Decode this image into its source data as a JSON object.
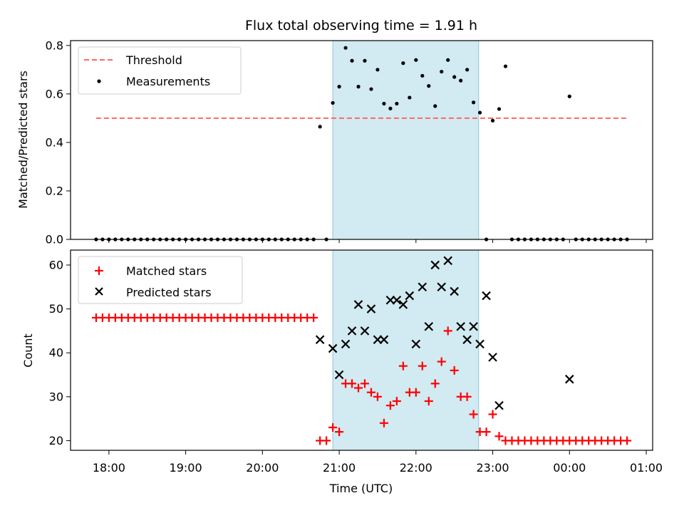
{
  "chart_data": [
    {
      "type": "scatter",
      "title": "Flux total observing time = 1.91 h",
      "xlabel": "",
      "ylabel": "Matched/Predicted stars",
      "ylim": [
        0,
        0.82
      ],
      "yticks": [
        0.0,
        0.2,
        0.4,
        0.6,
        0.8
      ],
      "ytick_labels": [
        "0.0",
        "0.2",
        "0.4",
        "0.6",
        "0.8"
      ],
      "legend_position": "top-left",
      "shaded_interval": {
        "start": "20:55",
        "end": "22:49",
        "color": "#add8e6"
      },
      "threshold": {
        "name": "Threshold",
        "value": 0.5,
        "x_start": "17:50",
        "x_end": "00:45",
        "color": "#ff6666",
        "style": "dashed"
      },
      "series": [
        {
          "name": "Measurements",
          "color": "#000000",
          "marker": "dot",
          "x": [
            "17:50",
            "17:55",
            "18:00",
            "18:05",
            "18:10",
            "18:15",
            "18:20",
            "18:25",
            "18:30",
            "18:35",
            "18:40",
            "18:45",
            "18:50",
            "18:55",
            "19:00",
            "19:05",
            "19:10",
            "19:15",
            "19:20",
            "19:25",
            "19:30",
            "19:35",
            "19:40",
            "19:45",
            "19:50",
            "19:55",
            "20:00",
            "20:05",
            "20:10",
            "20:15",
            "20:20",
            "20:25",
            "20:30",
            "20:35",
            "20:40",
            "20:45",
            "20:50",
            "20:55",
            "21:00",
            "21:05",
            "21:10",
            "21:15",
            "21:20",
            "21:25",
            "21:30",
            "21:35",
            "21:40",
            "21:45",
            "21:50",
            "21:55",
            "22:00",
            "22:05",
            "22:10",
            "22:15",
            "22:20",
            "22:25",
            "22:30",
            "22:35",
            "22:40",
            "22:45",
            "22:50",
            "22:55",
            "23:00",
            "23:05",
            "23:10",
            "23:15",
            "23:20",
            "23:25",
            "23:30",
            "23:35",
            "23:40",
            "23:45",
            "23:50",
            "23:55",
            "00:00",
            "00:05",
            "00:10",
            "00:15",
            "00:20",
            "00:25",
            "00:30",
            "00:35",
            "00:40",
            "00:45"
          ],
          "y": [
            0,
            0,
            0,
            0,
            0,
            0,
            0,
            0,
            0,
            0,
            0,
            0,
            0,
            0,
            0,
            0,
            0,
            0,
            0,
            0,
            0,
            0,
            0,
            0,
            0,
            0,
            0,
            0,
            0,
            0,
            0,
            0,
            0,
            0,
            0,
            0.465,
            0,
            0.563,
            0.63,
            0.79,
            0.737,
            0.63,
            0.737,
            0.62,
            0.7,
            0.56,
            0.54,
            0.56,
            0.727,
            0.585,
            0.74,
            0.675,
            0.633,
            0.55,
            0.692,
            0.74,
            0.67,
            0.655,
            0.7,
            0.565,
            0.523,
            0,
            0.49,
            0.538,
            0.714,
            0,
            0,
            0,
            0,
            0,
            0,
            0,
            0,
            0,
            0.59,
            0,
            0,
            0,
            0,
            0,
            0,
            0,
            0,
            0
          ]
        }
      ]
    },
    {
      "type": "scatter",
      "title": "",
      "xlabel": "Time (UTC)",
      "ylabel": "Count",
      "ylim": [
        17.8,
        63.4
      ],
      "yticks": [
        20,
        30,
        40,
        50,
        60
      ],
      "ytick_labels": [
        "20",
        "30",
        "40",
        "50",
        "60"
      ],
      "xlim": [
        "17:30",
        "01:05"
      ],
      "xticks": [
        "18:00",
        "19:00",
        "20:00",
        "21:00",
        "22:00",
        "23:00",
        "00:00",
        "01:00"
      ],
      "legend_position": "top-left",
      "shaded_interval": {
        "start": "20:55",
        "end": "22:49",
        "color": "#add8e6"
      },
      "series": [
        {
          "name": "Matched stars",
          "color": "#ff0000",
          "marker": "plus",
          "x": [
            "17:50",
            "17:55",
            "18:00",
            "18:05",
            "18:10",
            "18:15",
            "18:20",
            "18:25",
            "18:30",
            "18:35",
            "18:40",
            "18:45",
            "18:50",
            "18:55",
            "19:00",
            "19:05",
            "19:10",
            "19:15",
            "19:20",
            "19:25",
            "19:30",
            "19:35",
            "19:40",
            "19:45",
            "19:50",
            "19:55",
            "20:00",
            "20:05",
            "20:10",
            "20:15",
            "20:20",
            "20:25",
            "20:30",
            "20:35",
            "20:40",
            "20:45",
            "20:50",
            "20:55",
            "21:00",
            "21:05",
            "21:10",
            "21:15",
            "21:20",
            "21:25",
            "21:30",
            "21:35",
            "21:40",
            "21:45",
            "21:50",
            "21:55",
            "22:00",
            "22:05",
            "22:10",
            "22:15",
            "22:20",
            "22:25",
            "22:30",
            "22:35",
            "22:40",
            "22:45",
            "22:50",
            "22:55",
            "23:00",
            "23:05",
            "23:10",
            "23:15",
            "23:20",
            "23:25",
            "23:30",
            "23:35",
            "23:40",
            "23:45",
            "23:50",
            "23:55",
            "00:00",
            "00:05",
            "00:10",
            "00:15",
            "00:20",
            "00:25",
            "00:30",
            "00:35",
            "00:40",
            "00:45"
          ],
          "y": [
            48,
            48,
            48,
            48,
            48,
            48,
            48,
            48,
            48,
            48,
            48,
            48,
            48,
            48,
            48,
            48,
            48,
            48,
            48,
            48,
            48,
            48,
            48,
            48,
            48,
            48,
            48,
            48,
            48,
            48,
            48,
            48,
            48,
            48,
            48,
            20,
            20,
            23,
            22,
            33,
            33,
            32,
            33,
            31,
            30,
            24,
            28,
            29,
            37,
            31,
            31,
            37,
            29,
            33,
            38,
            45,
            36,
            30,
            30,
            26,
            22,
            22,
            26,
            21,
            20,
            20,
            20,
            20,
            20,
            20,
            20,
            20,
            20,
            20,
            20,
            20,
            20,
            20,
            20,
            20,
            20,
            20,
            20,
            20
          ]
        },
        {
          "name": "Predicted stars",
          "color": "#000000",
          "marker": "x",
          "x": [
            "20:45",
            "20:55",
            "21:00",
            "21:05",
            "21:10",
            "21:15",
            "21:20",
            "21:25",
            "21:30",
            "21:35",
            "21:40",
            "21:45",
            "21:50",
            "21:55",
            "22:00",
            "22:05",
            "22:10",
            "22:15",
            "22:20",
            "22:25",
            "22:30",
            "22:35",
            "22:40",
            "22:45",
            "22:50",
            "22:55",
            "23:00",
            "23:05",
            "00:00"
          ],
          "y": [
            43,
            41,
            35,
            42,
            45,
            51,
            45,
            50,
            43,
            43,
            52,
            52,
            51,
            53,
            42,
            55,
            46,
            60,
            55,
            61,
            54,
            46,
            43,
            46,
            42,
            53,
            39,
            28,
            34
          ]
        }
      ]
    }
  ]
}
